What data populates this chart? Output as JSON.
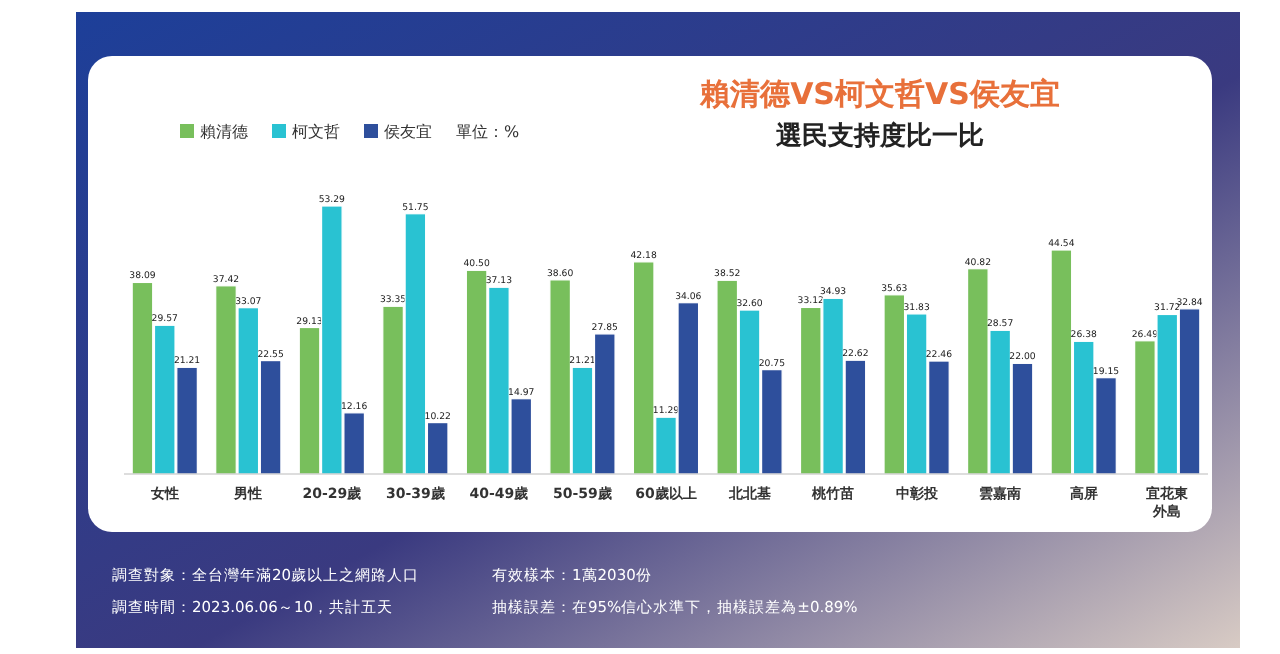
{
  "chart_data": {
    "type": "bar",
    "title": "賴清德VS柯文哲VS侯友宜",
    "subtitle": "選民支持度比一比",
    "legend_title": "單位：%",
    "legend": "top left",
    "categories": [
      "女性",
      "男性",
      "20-29歲",
      "30-39歲",
      "40-49歲",
      "50-59歲",
      "60歲以上",
      "北北基",
      "桃竹苗",
      "中彰投",
      "雲嘉南",
      "高屏",
      "宜花東外島"
    ],
    "series": [
      {
        "name": "賴清德",
        "color": "#78bf5c",
        "values": [
          38.09,
          37.42,
          29.13,
          33.35,
          40.5,
          38.6,
          42.18,
          38.52,
          33.12,
          35.63,
          40.82,
          44.54,
          26.49
        ],
        "value_labels": [
          "38.09",
          "37.42",
          "29.13",
          "33.35",
          "40.50",
          "38.60",
          "42.18",
          "38.52",
          "33.12",
          "35.63",
          "40.82",
          "44.54",
          "26.49"
        ]
      },
      {
        "name": "柯文哲",
        "color": "#29c2d2",
        "values": [
          29.57,
          33.07,
          53.29,
          51.75,
          37.13,
          21.21,
          11.29,
          32.6,
          34.93,
          31.83,
          28.57,
          26.38,
          31.72
        ],
        "value_labels": [
          "29.57",
          "33.07",
          "53.29",
          "51.75",
          "37.13",
          "21.21",
          "11.29",
          "32.60",
          "34.93",
          "31.83",
          "28.57",
          "26.38",
          "31.72"
        ]
      },
      {
        "name": "侯友宜",
        "color": "#2e4f9c",
        "values": [
          21.21,
          22.55,
          12.16,
          10.22,
          14.97,
          27.85,
          34.06,
          20.75,
          22.62,
          22.46,
          22.0,
          19.15,
          32.84
        ],
        "value_labels": [
          "21.21",
          "22.55",
          "12.16",
          "10.22",
          "14.97",
          "27.85",
          "34.06",
          "20.75",
          "22.62",
          "22.46",
          "22.00",
          "19.15",
          "32.84"
        ]
      }
    ],
    "annotations": [
      "調查對象：全台灣年滿20歲以上之網路人口",
      "調查時間：2023.06.06～10，共計五天",
      "有效樣本：1萬2030份",
      "抽樣誤差：在95%信心水準下，抽樣誤差為±0.89%"
    ]
  }
}
